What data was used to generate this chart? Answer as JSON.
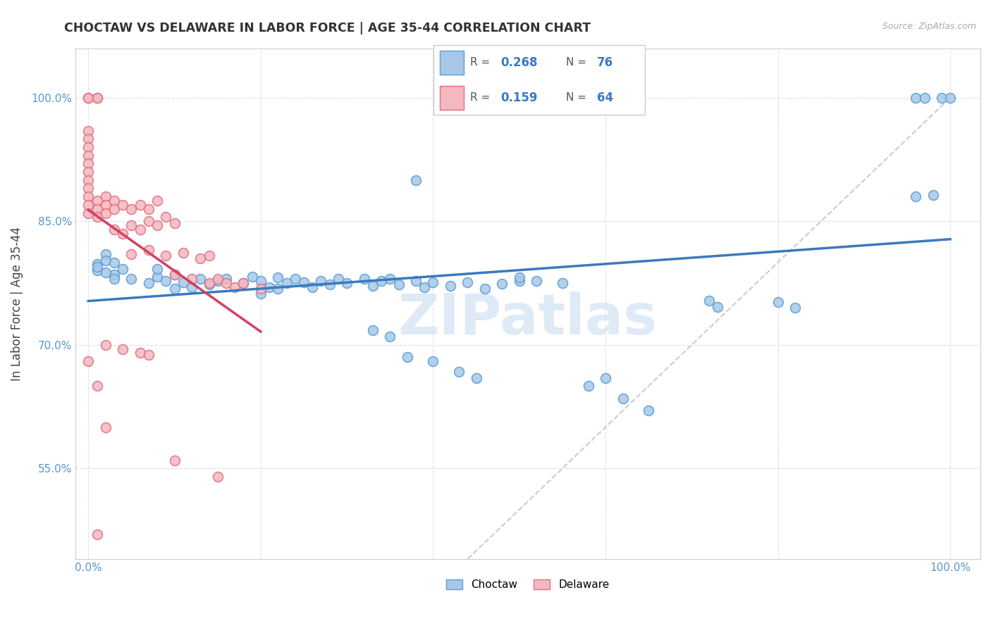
{
  "title": "CHOCTAW VS DELAWARE IN LABOR FORCE | AGE 35-44 CORRELATION CHART",
  "source": "Source: ZipAtlas.com",
  "ylabel": "In Labor Force | Age 35-44",
  "x_ticks": [
    0.0,
    0.2,
    0.4,
    0.6,
    0.8,
    1.0
  ],
  "x_tick_labels": [
    "0.0%",
    "",
    "",
    "",
    "",
    "100.0%"
  ],
  "y_ticks": [
    0.55,
    0.7,
    0.85,
    1.0
  ],
  "y_tick_labels": [
    "55.0%",
    "70.0%",
    "85.0%",
    "100.0%"
  ],
  "choctaw_color": "#a8c8e8",
  "choctaw_edge_color": "#5a9fd4",
  "delaware_color": "#f4b8c0",
  "delaware_edge_color": "#e07080",
  "choctaw_line_color": "#3a7abf",
  "delaware_line_color": "#d44060",
  "diag_line_color": "#cccccc",
  "watermark": "ZIPatlas",
  "legend_choctaw_R": "0.268",
  "legend_choctaw_N": "76",
  "legend_delaware_R": "0.159",
  "legend_delaware_N": "64",
  "tick_color": "#5599cc",
  "ylabel_color": "#444444"
}
